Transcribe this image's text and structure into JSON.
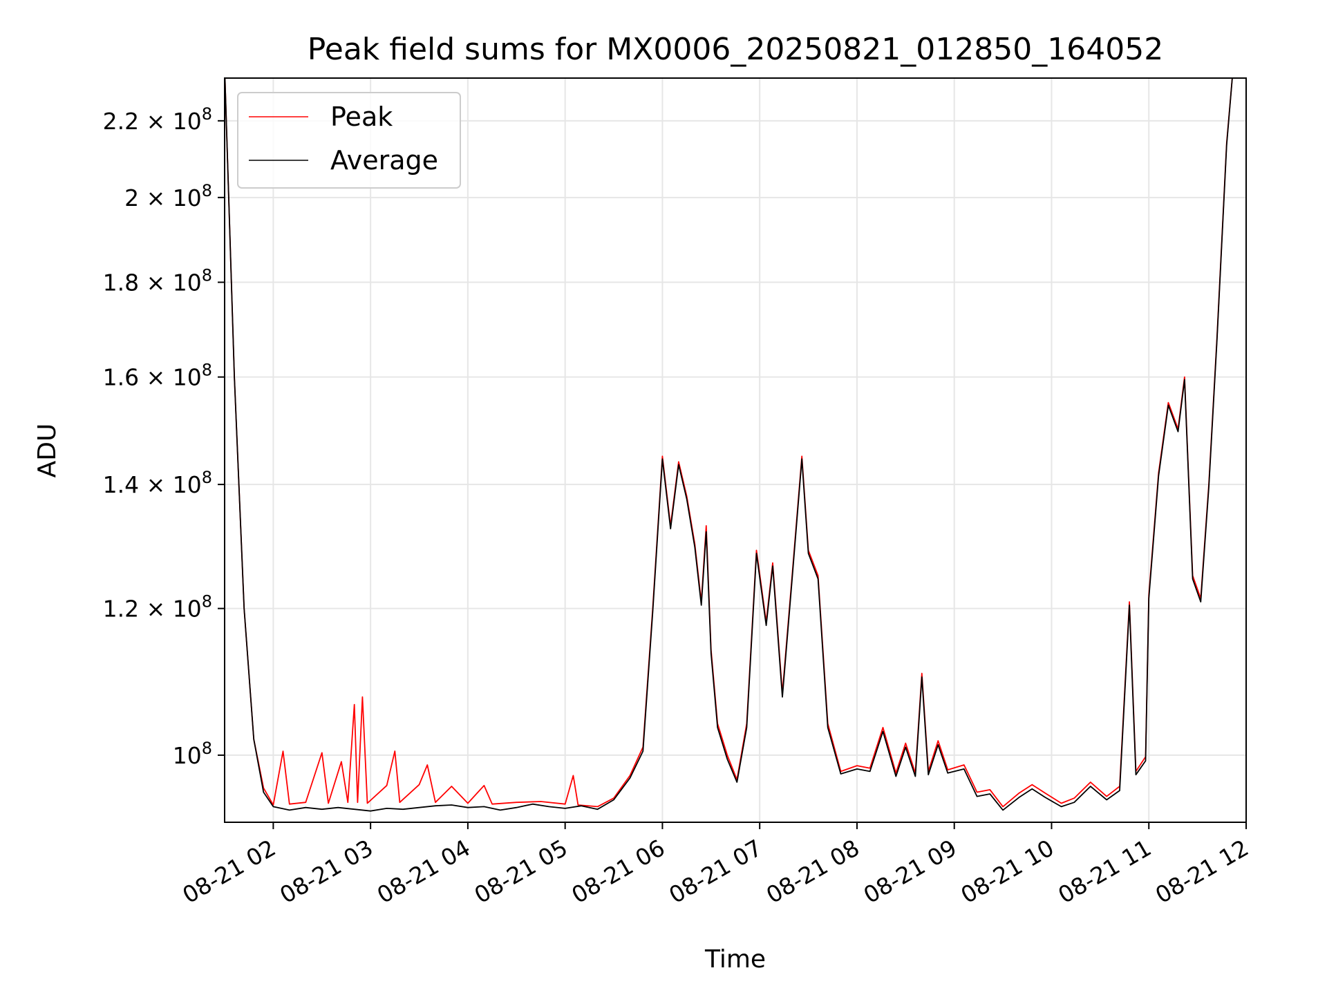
{
  "chart_data": {
    "type": "line",
    "title": "Peak field sums for MX0006_20250821_012850_164052",
    "xlabel": "Time",
    "ylabel": "ADU",
    "y_scale": "log",
    "xlim": [
      "08-21 01:30",
      "08-21 12:00"
    ],
    "ylim": [
      92000000,
      232000000
    ],
    "grid": true,
    "legend_placement": "upper-left",
    "x_ticks": [
      "08-21 02",
      "08-21 03",
      "08-21 04",
      "08-21 05",
      "08-21 06",
      "08-21 07",
      "08-21 08",
      "08-21 09",
      "08-21 10",
      "08-21 11",
      "08-21 12"
    ],
    "y_ticks": [
      {
        "value": 100000000,
        "base": "10",
        "exp": "8",
        "mantissa": ""
      },
      {
        "value": 120000000,
        "base": "1.2 × 10",
        "exp": "8",
        "mantissa": "1.2"
      },
      {
        "value": 140000000,
        "base": "1.4 × 10",
        "exp": "8",
        "mantissa": "1.4"
      },
      {
        "value": 160000000,
        "base": "1.6 × 10",
        "exp": "8",
        "mantissa": "1.6"
      },
      {
        "value": 180000000,
        "base": "1.8 × 10",
        "exp": "8",
        "mantissa": "1.8"
      },
      {
        "value": 200000000,
        "base": "2 × 10",
        "exp": "8",
        "mantissa": "2"
      },
      {
        "value": 220000000,
        "base": "2.2 × 10",
        "exp": "8",
        "mantissa": "2.2"
      }
    ],
    "series": [
      {
        "name": "Peak",
        "color": "#ff0000",
        "points": [
          [
            "08-21 01:30",
            235000000
          ],
          [
            "08-21 01:36",
            160000000
          ],
          [
            "08-21 01:42",
            120000000
          ],
          [
            "08-21 01:48",
            102000000
          ],
          [
            "08-21 01:54",
            96000000
          ],
          [
            "08-21 02:00",
            94000000
          ],
          [
            "08-21 02:06",
            100500000
          ],
          [
            "08-21 02:10",
            94100000
          ],
          [
            "08-21 02:20",
            94300000
          ],
          [
            "08-21 02:30",
            100300000
          ],
          [
            "08-21 02:34",
            94200000
          ],
          [
            "08-21 02:42",
            99200000
          ],
          [
            "08-21 02:46",
            94300000
          ],
          [
            "08-21 02:50",
            106500000
          ],
          [
            "08-21 02:52",
            94300000
          ],
          [
            "08-21 02:55",
            107500000
          ],
          [
            "08-21 02:58",
            94200000
          ],
          [
            "08-21 03:10",
            96300000
          ],
          [
            "08-21 03:15",
            100500000
          ],
          [
            "08-21 03:18",
            94300000
          ],
          [
            "08-21 03:30",
            96400000
          ],
          [
            "08-21 03:35",
            98800000
          ],
          [
            "08-21 03:40",
            94300000
          ],
          [
            "08-21 03:50",
            96200000
          ],
          [
            "08-21 04:00",
            94200000
          ],
          [
            "08-21 04:10",
            96300000
          ],
          [
            "08-21 04:15",
            94100000
          ],
          [
            "08-21 04:30",
            94300000
          ],
          [
            "08-21 04:45",
            94400000
          ],
          [
            "08-21 05:00",
            94100000
          ],
          [
            "08-21 05:05",
            97500000
          ],
          [
            "08-21 05:08",
            94000000
          ],
          [
            "08-21 05:20",
            93800000
          ],
          [
            "08-21 05:30",
            94800000
          ],
          [
            "08-21 05:40",
            97500000
          ],
          [
            "08-21 05:48",
            101000000
          ],
          [
            "08-21 05:54",
            120000000
          ],
          [
            "08-21 06:00",
            145000000
          ],
          [
            "08-21 06:05",
            133000000
          ],
          [
            "08-21 06:10",
            144000000
          ],
          [
            "08-21 06:15",
            138000000
          ],
          [
            "08-21 06:20",
            130000000
          ],
          [
            "08-21 06:24",
            121000000
          ],
          [
            "08-21 06:27",
            133000000
          ],
          [
            "08-21 06:30",
            114000000
          ],
          [
            "08-21 06:34",
            104000000
          ],
          [
            "08-21 06:40",
            100000000
          ],
          [
            "08-21 06:46",
            97000000
          ],
          [
            "08-21 06:52",
            104000000
          ],
          [
            "08-21 06:58",
            129000000
          ],
          [
            "08-21 07:04",
            118000000
          ],
          [
            "08-21 07:08",
            127000000
          ],
          [
            "08-21 07:14",
            108000000
          ],
          [
            "08-21 07:20",
            125000000
          ],
          [
            "08-21 07:26",
            145000000
          ],
          [
            "08-21 07:30",
            129000000
          ],
          [
            "08-21 07:36",
            125000000
          ],
          [
            "08-21 07:42",
            104000000
          ],
          [
            "08-21 07:50",
            98000000
          ],
          [
            "08-21 08:00",
            98700000
          ],
          [
            "08-21 08:08",
            98400000
          ],
          [
            "08-21 08:16",
            103500000
          ],
          [
            "08-21 08:24",
            97800000
          ],
          [
            "08-21 08:30",
            101500000
          ],
          [
            "08-21 08:36",
            97800000
          ],
          [
            "08-21 08:40",
            110700000
          ],
          [
            "08-21 08:44",
            98000000
          ],
          [
            "08-21 08:50",
            101800000
          ],
          [
            "08-21 08:56",
            98200000
          ],
          [
            "08-21 09:06",
            98800000
          ],
          [
            "08-21 09:14",
            95500000
          ],
          [
            "08-21 09:22",
            95800000
          ],
          [
            "08-21 09:30",
            93800000
          ],
          [
            "08-21 09:40",
            95400000
          ],
          [
            "08-21 09:48",
            96400000
          ],
          [
            "08-21 09:56",
            95400000
          ],
          [
            "08-21 10:06",
            94200000
          ],
          [
            "08-21 10:14",
            94800000
          ],
          [
            "08-21 10:24",
            96700000
          ],
          [
            "08-21 10:34",
            95000000
          ],
          [
            "08-21 10:42",
            96200000
          ],
          [
            "08-21 10:48",
            121000000
          ],
          [
            "08-21 10:52",
            98000000
          ],
          [
            "08-21 10:58",
            99800000
          ],
          [
            "08-21 11:00",
            122000000
          ],
          [
            "08-21 11:06",
            142000000
          ],
          [
            "08-21 11:12",
            155000000
          ],
          [
            "08-21 11:18",
            150000000
          ],
          [
            "08-21 11:22",
            160000000
          ],
          [
            "08-21 11:27",
            125000000
          ],
          [
            "08-21 11:32",
            121500000
          ],
          [
            "08-21 11:37",
            140000000
          ],
          [
            "08-21 11:42",
            168000000
          ],
          [
            "08-21 11:48",
            214000000
          ],
          [
            "08-21 11:52",
            235000000
          ]
        ]
      },
      {
        "name": "Average",
        "color": "#000000",
        "points": [
          [
            "08-21 01:30",
            235000000
          ],
          [
            "08-21 01:36",
            160000000
          ],
          [
            "08-21 01:42",
            120000000
          ],
          [
            "08-21 01:48",
            102000000
          ],
          [
            "08-21 01:54",
            95500000
          ],
          [
            "08-21 02:00",
            93800000
          ],
          [
            "08-21 02:10",
            93400000
          ],
          [
            "08-21 02:20",
            93700000
          ],
          [
            "08-21 02:30",
            93500000
          ],
          [
            "08-21 02:40",
            93700000
          ],
          [
            "08-21 02:50",
            93500000
          ],
          [
            "08-21 03:00",
            93300000
          ],
          [
            "08-21 03:10",
            93600000
          ],
          [
            "08-21 03:20",
            93500000
          ],
          [
            "08-21 03:30",
            93700000
          ],
          [
            "08-21 03:40",
            93900000
          ],
          [
            "08-21 03:50",
            94000000
          ],
          [
            "08-21 04:00",
            93700000
          ],
          [
            "08-21 04:10",
            93800000
          ],
          [
            "08-21 04:20",
            93400000
          ],
          [
            "08-21 04:30",
            93700000
          ],
          [
            "08-21 04:40",
            94100000
          ],
          [
            "08-21 04:50",
            93800000
          ],
          [
            "08-21 05:00",
            93600000
          ],
          [
            "08-21 05:10",
            93900000
          ],
          [
            "08-21 05:20",
            93500000
          ],
          [
            "08-21 05:30",
            94600000
          ],
          [
            "08-21 05:40",
            97200000
          ],
          [
            "08-21 05:48",
            100500000
          ],
          [
            "08-21 05:54",
            119500000
          ],
          [
            "08-21 06:00",
            144500000
          ],
          [
            "08-21 06:05",
            132500000
          ],
          [
            "08-21 06:10",
            143500000
          ],
          [
            "08-21 06:15",
            137500000
          ],
          [
            "08-21 06:20",
            129500000
          ],
          [
            "08-21 06:24",
            120500000
          ],
          [
            "08-21 06:27",
            132000000
          ],
          [
            "08-21 06:30",
            113500000
          ],
          [
            "08-21 06:34",
            103500000
          ],
          [
            "08-21 06:40",
            99500000
          ],
          [
            "08-21 06:46",
            96700000
          ],
          [
            "08-21 06:52",
            103500000
          ],
          [
            "08-21 06:58",
            128500000
          ],
          [
            "08-21 07:04",
            117500000
          ],
          [
            "08-21 07:08",
            126500000
          ],
          [
            "08-21 07:14",
            107500000
          ],
          [
            "08-21 07:20",
            124500000
          ],
          [
            "08-21 07:26",
            144500000
          ],
          [
            "08-21 07:30",
            128500000
          ],
          [
            "08-21 07:36",
            124500000
          ],
          [
            "08-21 07:42",
            103500000
          ],
          [
            "08-21 07:50",
            97700000
          ],
          [
            "08-21 08:00",
            98300000
          ],
          [
            "08-21 08:08",
            98000000
          ],
          [
            "08-21 08:16",
            103000000
          ],
          [
            "08-21 08:24",
            97400000
          ],
          [
            "08-21 08:30",
            101000000
          ],
          [
            "08-21 08:36",
            97400000
          ],
          [
            "08-21 08:40",
            110200000
          ],
          [
            "08-21 08:44",
            97600000
          ],
          [
            "08-21 08:50",
            101300000
          ],
          [
            "08-21 08:56",
            97800000
          ],
          [
            "08-21 09:06",
            98300000
          ],
          [
            "08-21 09:14",
            95000000
          ],
          [
            "08-21 09:22",
            95300000
          ],
          [
            "08-21 09:30",
            93400000
          ],
          [
            "08-21 09:40",
            94900000
          ],
          [
            "08-21 09:48",
            95900000
          ],
          [
            "08-21 09:56",
            94900000
          ],
          [
            "08-21 10:06",
            93800000
          ],
          [
            "08-21 10:14",
            94300000
          ],
          [
            "08-21 10:24",
            96200000
          ],
          [
            "08-21 10:34",
            94600000
          ],
          [
            "08-21 10:42",
            95700000
          ],
          [
            "08-21 10:48",
            120500000
          ],
          [
            "08-21 10:52",
            97600000
          ],
          [
            "08-21 10:58",
            99300000
          ],
          [
            "08-21 11:00",
            121500000
          ],
          [
            "08-21 11:06",
            141500000
          ],
          [
            "08-21 11:12",
            154500000
          ],
          [
            "08-21 11:18",
            149500000
          ],
          [
            "08-21 11:22",
            159500000
          ],
          [
            "08-21 11:27",
            124500000
          ],
          [
            "08-21 11:32",
            121000000
          ],
          [
            "08-21 11:37",
            139500000
          ],
          [
            "08-21 11:42",
            167500000
          ],
          [
            "08-21 11:48",
            213500000
          ],
          [
            "08-21 11:52",
            235000000
          ]
        ]
      }
    ]
  },
  "legend": {
    "peak_label": "Peak",
    "average_label": "Average"
  },
  "colors": {
    "peak": "#ff0000",
    "average": "#000000",
    "grid": "#e6e6e6",
    "axes": "#000000"
  }
}
